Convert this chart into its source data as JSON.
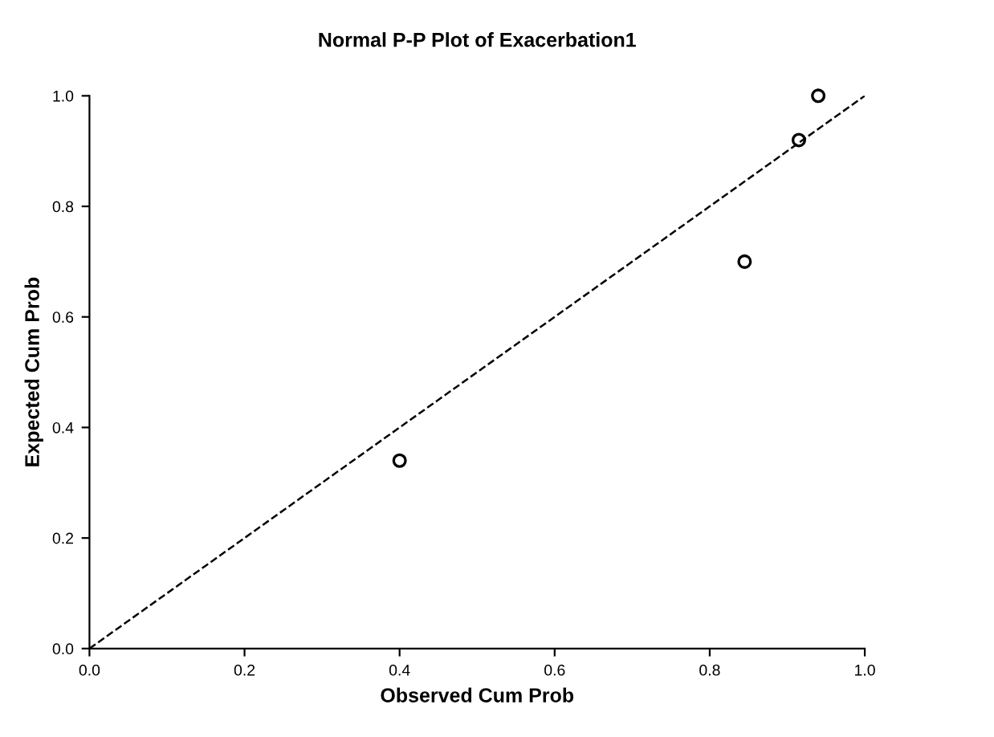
{
  "chart_data": {
    "type": "scatter",
    "title": "Normal P-P Plot of Exacerbation1",
    "xlabel": "Observed Cum Prob",
    "ylabel": "Expected Cum Prob",
    "xlim": [
      0,
      1
    ],
    "ylim": [
      0,
      1
    ],
    "xticks": [
      {
        "value": 0,
        "label": "0.0"
      },
      0.2,
      0.4,
      0.6,
      0.8,
      {
        "value": 1,
        "label": "1.0"
      }
    ],
    "yticks": [
      {
        "value": 0,
        "label": "0.0"
      },
      0.2,
      0.4,
      0.6,
      0.8,
      {
        "value": 1,
        "label": "1.0"
      }
    ],
    "grid": false,
    "legend": false,
    "marker": "circle",
    "series": [
      {
        "color": "#000000",
        "x": [
          0.4,
          0.845,
          0.915,
          0.94
        ],
        "values": [
          0.34,
          0.7,
          0.92,
          1.0
        ]
      },
      {
        "type": "line",
        "color": "#000000",
        "line_style": "dashed",
        "marker": "none",
        "x": [
          0,
          1
        ],
        "values": [
          0,
          1
        ]
      }
    ]
  }
}
